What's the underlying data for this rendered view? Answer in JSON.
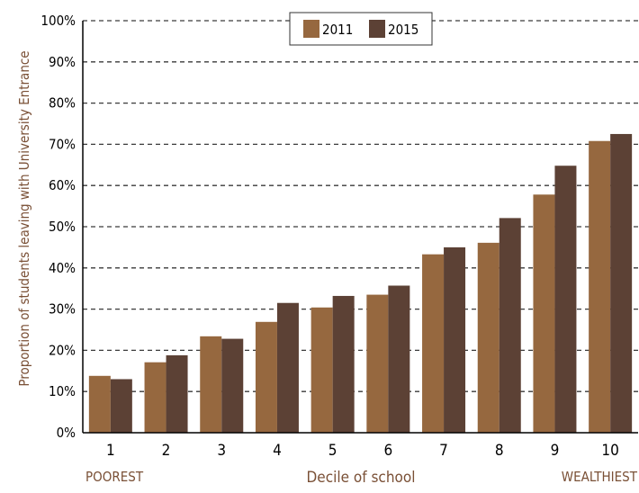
{
  "chart_data": {
    "type": "bar",
    "categories": [
      "1",
      "2",
      "3",
      "4",
      "5",
      "6",
      "7",
      "8",
      "9",
      "10"
    ],
    "series": [
      {
        "name": "2011",
        "values": [
          13.8,
          17.1,
          23.4,
          26.9,
          30.4,
          33.5,
          43.3,
          46.1,
          57.8,
          70.8
        ]
      },
      {
        "name": "2015",
        "values": [
          13.0,
          18.8,
          22.8,
          31.5,
          33.2,
          35.7,
          45.0,
          52.1,
          64.8,
          72.5
        ]
      }
    ],
    "ylabel": "Proportion of students leaving with University Entrance",
    "xlabel": "Decile of school",
    "x_left_note": "POOREST",
    "x_right_note": "WEALTHIEST",
    "yticks": [
      "0%",
      "10%",
      "20%",
      "30%",
      "40%",
      "50%",
      "60%",
      "70%",
      "80%",
      "90%",
      "100%"
    ],
    "ylim": [
      0,
      100
    ],
    "grid": true,
    "legend": "top-center",
    "colors": {
      "2011": "#96683f",
      "2015": "#5c4135",
      "axis_label": "#7a5036",
      "grid": "#3a3a3a"
    }
  }
}
